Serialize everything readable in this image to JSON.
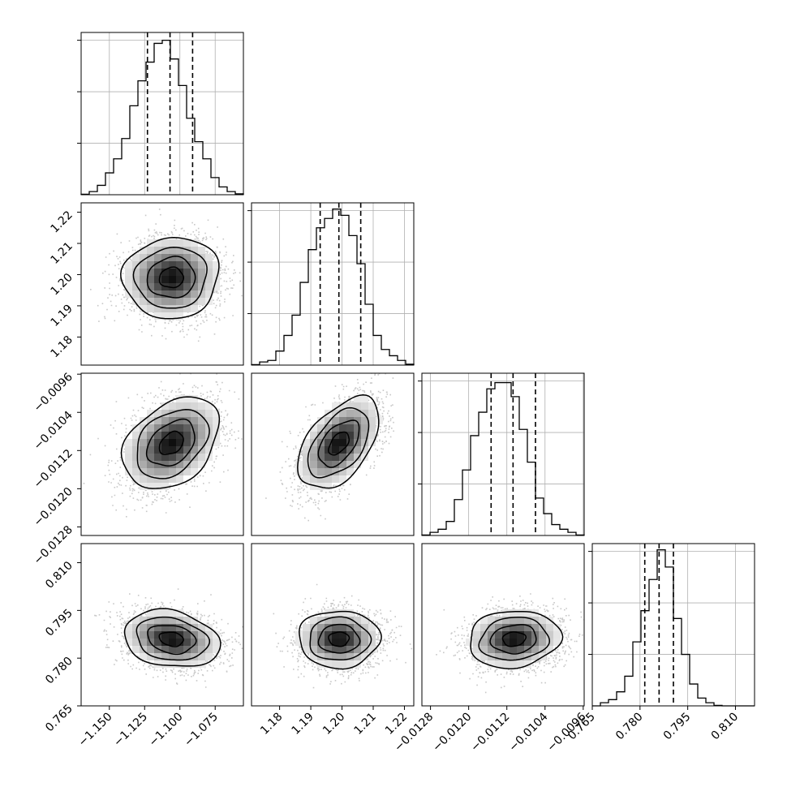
{
  "chart_data": {
    "type": "corner",
    "grid": true,
    "colors": {
      "hist": "#000000",
      "grid": "#b0b0b0",
      "scatter": "#9a9a9a",
      "density": "#000000"
    },
    "parameters": [
      {
        "mean": -1.106,
        "sd": 0.017,
        "range": [
          -1.17,
          -1.055
        ],
        "ticks": [
          -1.15,
          -1.125,
          -1.1,
          -1.075
        ],
        "tick_labels": [
          "−1.150",
          "−1.125",
          "−1.100",
          "−1.075"
        ],
        "quantiles": [
          -1.123,
          -1.107,
          -1.091
        ],
        "hist": [
          0.003,
          0.02,
          0.06,
          0.14,
          0.23,
          0.36,
          0.57,
          0.73,
          0.85,
          0.97,
          0.99,
          0.87,
          0.7,
          0.49,
          0.34,
          0.23,
          0.11,
          0.05,
          0.02,
          0.006
        ],
        "hist_yticks": [
          0.33,
          0.66,
          0.99
        ]
      },
      {
        "mean": 1.199,
        "sd": 0.0065,
        "range": [
          1.171,
          1.223
        ],
        "ticks": [
          1.18,
          1.19,
          1.2,
          1.21,
          1.22
        ],
        "tick_labels": [
          "1.18",
          "1.19",
          "1.20",
          "1.21",
          "1.22"
        ],
        "quantiles": [
          1.193,
          1.199,
          1.206
        ],
        "hist": [
          0.003,
          0.02,
          0.03,
          0.09,
          0.19,
          0.32,
          0.53,
          0.74,
          0.88,
          0.94,
          1.0,
          0.96,
          0.83,
          0.65,
          0.39,
          0.19,
          0.1,
          0.06,
          0.03,
          0.006
        ],
        "hist_yticks": [
          0.33,
          0.66,
          0.99
        ]
      },
      {
        "mean": -0.01105,
        "sd": 0.00048,
        "range": [
          -0.01298,
          -0.00958
        ],
        "ticks": [
          -0.0128,
          -0.012,
          -0.0112,
          -0.0104,
          -0.0096
        ],
        "tick_labels": [
          "−0.0128",
          "−0.0120",
          "−0.0112",
          "−0.0104",
          "−0.0096"
        ],
        "quantiles": [
          -0.01153,
          -0.01107,
          -0.0106
        ],
        "hist": [
          0.003,
          0.02,
          0.04,
          0.09,
          0.23,
          0.42,
          0.64,
          0.79,
          0.94,
          0.98,
          0.98,
          0.89,
          0.68,
          0.47,
          0.24,
          0.14,
          0.07,
          0.04,
          0.02,
          0.003
        ],
        "hist_yticks": [
          0.33,
          0.66,
          0.99
        ]
      },
      {
        "mean": 0.786,
        "sd": 0.0045,
        "range": [
          0.765,
          0.816
        ],
        "ticks": [
          0.765,
          0.78,
          0.795,
          0.81
        ],
        "tick_labels": [
          "0.765",
          "0.780",
          "0.795",
          "0.810"
        ],
        "quantiles": [
          0.7815,
          0.786,
          0.7905
        ],
        "hist": [
          0.0,
          0.02,
          0.04,
          0.09,
          0.19,
          0.41,
          0.61,
          0.81,
          1.0,
          0.89,
          0.56,
          0.33,
          0.14,
          0.05,
          0.02,
          0.003,
          0.0,
          0.0,
          0.0,
          0.0
        ],
        "hist_yticks": [
          0.33,
          0.66,
          0.99
        ]
      }
    ],
    "correlations": {
      "1-0": 0.05,
      "2-0": 0.35,
      "2-1": 0.5,
      "3-0": -0.2,
      "3-1": 0.0,
      "3-2": 0.1
    }
  }
}
